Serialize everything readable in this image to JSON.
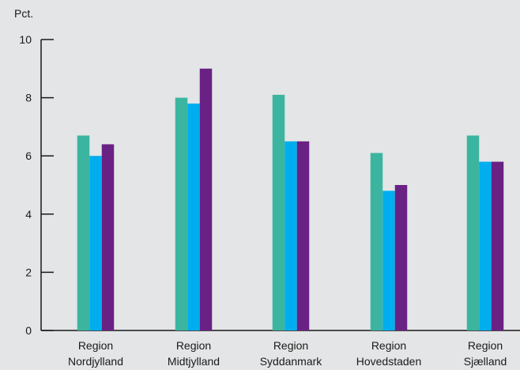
{
  "chart_data": {
    "type": "bar",
    "ylabel": "Pct.",
    "ylim": [
      0,
      10
    ],
    "yticks": [
      0,
      2,
      4,
      6,
      8,
      10
    ],
    "categories": [
      [
        "Region",
        "Nordjylland"
      ],
      [
        "Region",
        "Midtjylland"
      ],
      [
        "Region",
        "Syddanmark"
      ],
      [
        "Region",
        "Hovedstaden"
      ],
      [
        "Region",
        "Sjælland"
      ]
    ],
    "series": [
      {
        "color": "#3bb5a0",
        "values": [
          6.7,
          8.0,
          8.1,
          6.1,
          6.7
        ]
      },
      {
        "color": "#00aeef",
        "values": [
          6.0,
          7.8,
          6.5,
          4.8,
          5.8
        ]
      },
      {
        "color": "#6a2184",
        "values": [
          6.4,
          9.0,
          6.5,
          5.0,
          5.8
        ]
      }
    ],
    "grid": false,
    "legend": "none"
  }
}
